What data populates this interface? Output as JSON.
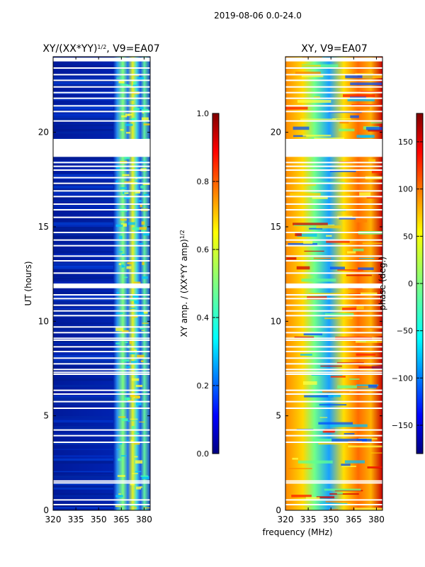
{
  "suptitle": "2019-08-06 0.0-24.0",
  "xlabel_shared": "frequency (MHz)",
  "chart_data": [
    {
      "type": "heatmap",
      "title_prefix": "XY/(XX*YY)",
      "title_sup": "1/2",
      "title_suffix": ", V9=EA07",
      "xlabel": "",
      "ylabel": "UT (hours)",
      "xlim": [
        320,
        384
      ],
      "ylim": [
        0,
        24
      ],
      "xticks": [
        320,
        335,
        350,
        365,
        380
      ],
      "yticks": [
        0,
        5,
        10,
        15,
        20
      ],
      "colorbar": {
        "label_prefix": "XY amp. / (XX*YY amp)",
        "label_sup": "1/2",
        "range": [
          0.0,
          1.0
        ],
        "ticks": [
          "0.0",
          "0.2",
          "0.4",
          "0.6",
          "0.8",
          "1.0"
        ],
        "colormap": "jet"
      }
    },
    {
      "type": "heatmap",
      "title": "XY, V9=EA07",
      "xlabel": "frequency (MHz)",
      "ylabel": "",
      "xlim": [
        320,
        384
      ],
      "ylim": [
        0,
        24
      ],
      "xticks": [
        320,
        335,
        350,
        365,
        380
      ],
      "yticks": [
        0,
        5,
        10,
        15,
        20
      ],
      "colorbar": {
        "label": "phase (deg.)",
        "range": [
          -180,
          180
        ],
        "ticks": [
          "−150",
          "−100",
          "−50",
          "0",
          "50",
          "100",
          "150"
        ],
        "colormap": "jet"
      }
    }
  ],
  "flagged_hours": [
    0.3,
    0.55,
    1.45,
    1.55,
    3.6,
    3.95,
    4.25,
    5.4,
    5.75,
    6.15,
    6.35,
    7.2,
    7.3,
    7.45,
    7.75,
    8.05,
    8.4,
    8.65,
    9.0,
    9.1,
    9.4,
    9.7,
    10.3,
    10.55,
    10.85,
    11.2,
    11.4,
    12.55,
    13.2,
    13.45,
    14.0,
    14.3,
    14.7,
    15.5,
    15.9,
    16.2,
    16.6,
    16.9,
    17.3,
    17.6,
    18.0,
    18.2,
    18.4,
    20.6,
    21.1,
    21.4,
    21.8,
    22.1,
    22.4,
    22.75,
    23.05,
    23.4
  ],
  "flagged_ranges": [
    [
      11.75,
      12.0
    ],
    [
      18.7,
      19.65
    ],
    [
      23.75,
      23.95
    ]
  ]
}
